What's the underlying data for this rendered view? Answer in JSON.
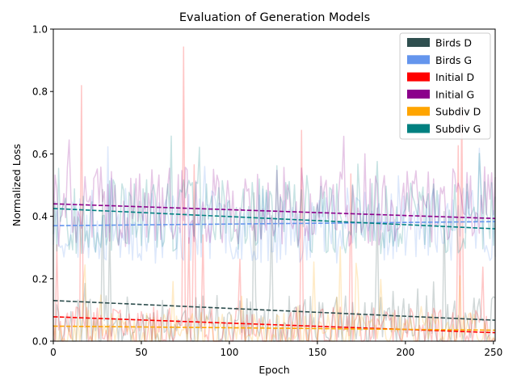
{
  "chart_data": {
    "type": "line",
    "title": "Evaluation of Generation Models",
    "xlabel": "Epoch",
    "ylabel": "Normalized Loss",
    "xlim": [
      0,
      251
    ],
    "ylim": [
      0.0,
      1.0
    ],
    "xticks": [
      0,
      50,
      100,
      150,
      200,
      250
    ],
    "xtick_labels": [
      "0",
      "50",
      "100",
      "150",
      "200",
      "250"
    ],
    "yticks": [
      0.0,
      0.2,
      0.4,
      0.6,
      0.8,
      1.0
    ],
    "ytick_labels": [
      "0.0",
      "0.2",
      "0.4",
      "0.6",
      "0.8",
      "1.0"
    ],
    "grid": false,
    "legend_position": "top-right",
    "noisy_series_alpha": 0.22,
    "series": [
      {
        "name": "Birds D",
        "color": "#2f4f4f",
        "trend": [
          0.13,
          0.067
        ],
        "noise": {
          "base": 0.05,
          "amp": 0.12,
          "spike": 0.68,
          "seed": 11
        }
      },
      {
        "name": "Birds G",
        "color": "#6495ed",
        "trend": [
          0.37,
          0.383
        ],
        "noise": {
          "base": 0.37,
          "amp": 0.12,
          "spike": 0.64,
          "seed": 23
        }
      },
      {
        "name": "Initial D",
        "color": "#ff0000",
        "trend": [
          0.078,
          0.027
        ],
        "noise": {
          "base": 0.03,
          "amp": 0.1,
          "spike": 1.0,
          "seed": 37
        }
      },
      {
        "name": "Initial G",
        "color": "#8b008b",
        "trend": [
          0.44,
          0.393
        ],
        "noise": {
          "base": 0.43,
          "amp": 0.13,
          "spike": 0.68,
          "seed": 41
        }
      },
      {
        "name": "Subdiv D",
        "color": "#ffa500",
        "trend": [
          0.048,
          0.035
        ],
        "noise": {
          "base": 0.03,
          "amp": 0.08,
          "spike": 0.32,
          "seed": 53
        }
      },
      {
        "name": "Subdiv G",
        "color": "#008080",
        "trend": [
          0.425,
          0.36
        ],
        "noise": {
          "base": 0.4,
          "amp": 0.12,
          "spike": 0.66,
          "seed": 67
        }
      }
    ]
  }
}
